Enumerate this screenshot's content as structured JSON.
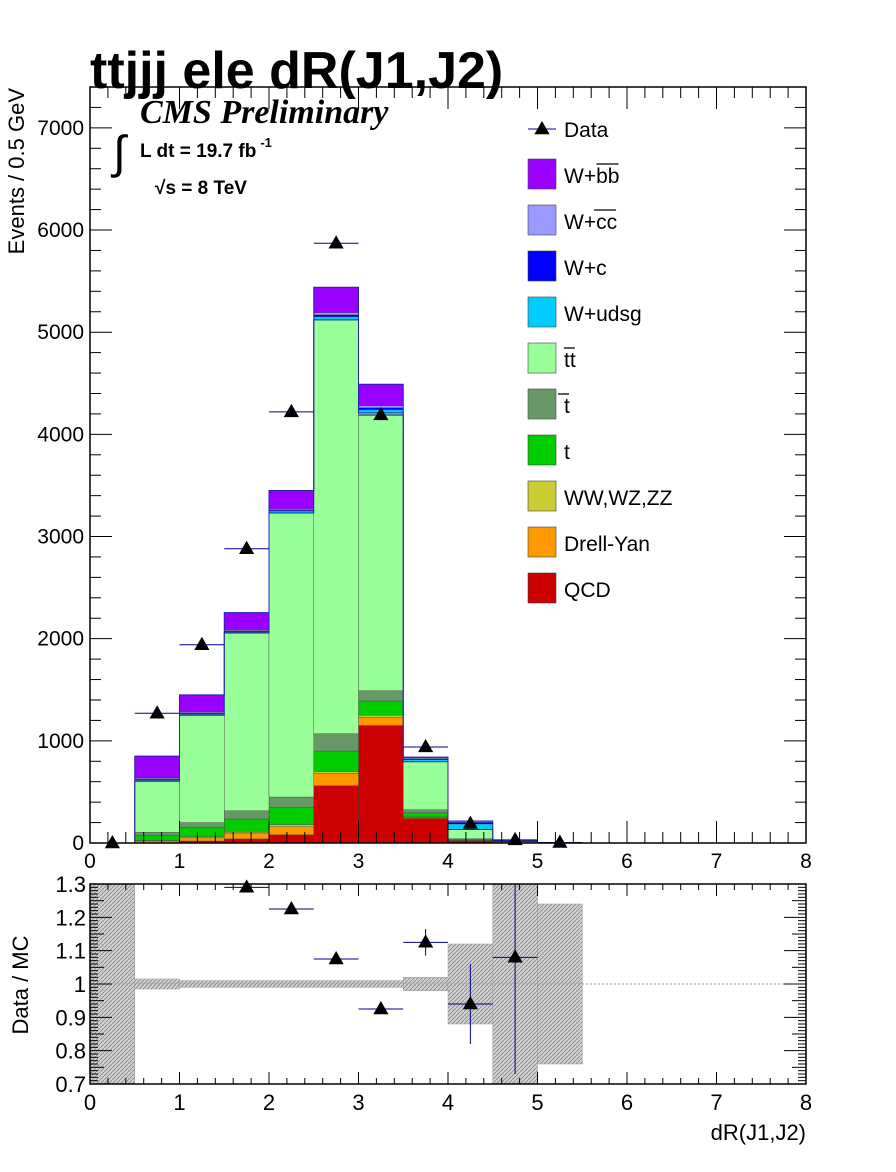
{
  "chart_data": [
    {
      "type": "bar",
      "stacked": true,
      "title": "ttjjj ele dR(J1,J2)",
      "annotations": {
        "experiment": "CMS Preliminary",
        "integral_symbol": "∫",
        "lumi_prefix": "L dt = 19.7 fb",
        "lumi_exponent": "-1",
        "energy_sqrt": "√",
        "energy": "s = 8 TeV"
      },
      "ylabel": "Events / 0.5 GeV",
      "xlabel": "",
      "xlim": [
        0,
        8
      ],
      "ylim": [
        0,
        7400
      ],
      "x_ticks": [
        "0",
        "1",
        "2",
        "3",
        "4",
        "5",
        "6",
        "7",
        "8"
      ],
      "y_ticks": [
        "0",
        "1000",
        "2000",
        "3000",
        "4000",
        "5000",
        "6000",
        "7000"
      ],
      "bin_edges": [
        0,
        0.5,
        1,
        1.5,
        2,
        2.5,
        3,
        3.5,
        4,
        4.5,
        5,
        5.5,
        6,
        6.5,
        7,
        7.5,
        8
      ],
      "legend": {
        "position": "top-right",
        "entries": [
          {
            "key": "data",
            "label": "Data"
          },
          {
            "key": "wbb",
            "label": "W+bb",
            "overline": "bb"
          },
          {
            "key": "wcc",
            "label": "W+cc",
            "overline": "cc"
          },
          {
            "key": "wc",
            "label": "W+c"
          },
          {
            "key": "wudsg",
            "label": "W+udsg"
          },
          {
            "key": "ttbar",
            "label": "tt",
            "overline": "t"
          },
          {
            "key": "tbar",
            "label": "t",
            "overline": "t"
          },
          {
            "key": "t",
            "label": "t"
          },
          {
            "key": "vv",
            "label": "WW,WZ,ZZ"
          },
          {
            "key": "dy",
            "label": "Drell-Yan"
          },
          {
            "key": "qcd",
            "label": "QCD"
          }
        ]
      },
      "series": [
        {
          "key": "qcd",
          "color": "#cc0000",
          "values": [
            0,
            0,
            20,
            40,
            80,
            560,
            1150,
            240,
            20,
            2,
            0,
            0,
            0,
            0,
            0,
            0
          ]
        },
        {
          "key": "dy",
          "color": "#ff9900",
          "values": [
            0,
            20,
            30,
            50,
            80,
            120,
            80,
            10,
            5,
            1,
            0,
            0,
            0,
            0,
            0,
            0
          ]
        },
        {
          "key": "vv",
          "color": "#cccc33",
          "values": [
            0,
            5,
            10,
            15,
            20,
            20,
            20,
            5,
            2,
            0,
            0,
            0,
            0,
            0,
            0,
            0
          ]
        },
        {
          "key": "t",
          "color": "#00cc00",
          "values": [
            0,
            50,
            90,
            130,
            170,
            200,
            140,
            40,
            10,
            1,
            0,
            0,
            0,
            0,
            0,
            0
          ]
        },
        {
          "key": "tbar",
          "color": "#669966",
          "values": [
            0,
            30,
            50,
            80,
            100,
            170,
            100,
            30,
            5,
            1,
            0,
            0,
            0,
            0,
            0,
            0
          ]
        },
        {
          "key": "ttbar",
          "color": "#99ff99",
          "values": [
            0,
            500,
            1050,
            1740,
            2780,
            4050,
            2720,
            470,
            90,
            10,
            0,
            0,
            0,
            0,
            0,
            0
          ]
        },
        {
          "key": "wudsg",
          "color": "#00ccff",
          "values": [
            0,
            10,
            10,
            10,
            20,
            30,
            30,
            20,
            60,
            5,
            0,
            0,
            0,
            0,
            0,
            0
          ]
        },
        {
          "key": "wc",
          "color": "#0000ff",
          "values": [
            0,
            10,
            10,
            10,
            10,
            20,
            20,
            10,
            10,
            1,
            0,
            0,
            0,
            0,
            0,
            0
          ]
        },
        {
          "key": "wcc",
          "color": "#9999ff",
          "values": [
            0,
            10,
            10,
            10,
            10,
            20,
            20,
            10,
            10,
            1,
            0,
            0,
            0,
            0,
            0,
            0
          ]
        },
        {
          "key": "wbb",
          "color": "#9900ff",
          "values": [
            0,
            215,
            170,
            170,
            180,
            250,
            210,
            5,
            3,
            1,
            0,
            0,
            0,
            0,
            0,
            0
          ]
        }
      ],
      "data_points": {
        "x": [
          0.25,
          0.75,
          1.25,
          1.75,
          2.25,
          2.75,
          3.25,
          3.75,
          4.25,
          4.75,
          5.25
        ],
        "y": [
          0,
          1270,
          1940,
          2880,
          4220,
          5870,
          4190,
          940,
          190,
          30,
          5
        ]
      }
    },
    {
      "type": "scatter",
      "xlabel": "dR(J1,J2)",
      "ylabel": "Data / MC",
      "xlim": [
        0,
        8
      ],
      "ylim": [
        0.7,
        1.3
      ],
      "x_ticks": [
        "0",
        "1",
        "2",
        "3",
        "4",
        "5",
        "6",
        "7",
        "8"
      ],
      "y_ticks": [
        "0.7",
        "0.8",
        "0.9",
        "1",
        "1.1",
        "1.2",
        "1.3"
      ],
      "reference_line": 1,
      "points": {
        "x": [
          1.75,
          2.25,
          2.75,
          3.25,
          3.75,
          4.25,
          4.75
        ],
        "y": [
          1.29,
          1.225,
          1.075,
          0.925,
          1.125,
          0.94,
          1.08
        ],
        "yerr": [
          0.01,
          0.01,
          0.01,
          0.01,
          0.04,
          0.12,
          0.35
        ]
      },
      "uncertainty_bands": [
        {
          "x": [
            0,
            0.5
          ],
          "y": [
            0.7,
            1.3
          ]
        },
        {
          "x": [
            0.5,
            1
          ],
          "y": [
            0.985,
            1.015
          ]
        },
        {
          "x": [
            1,
            3.5
          ],
          "y": [
            0.99,
            1.01
          ]
        },
        {
          "x": [
            3.5,
            4
          ],
          "y": [
            0.98,
            1.02
          ]
        },
        {
          "x": [
            4,
            4.5
          ],
          "y": [
            0.88,
            1.12
          ]
        },
        {
          "x": [
            4.5,
            5
          ],
          "y": [
            0.7,
            1.3
          ]
        },
        {
          "x": [
            5,
            5.5
          ],
          "y": [
            0.76,
            1.24
          ]
        }
      ]
    }
  ]
}
